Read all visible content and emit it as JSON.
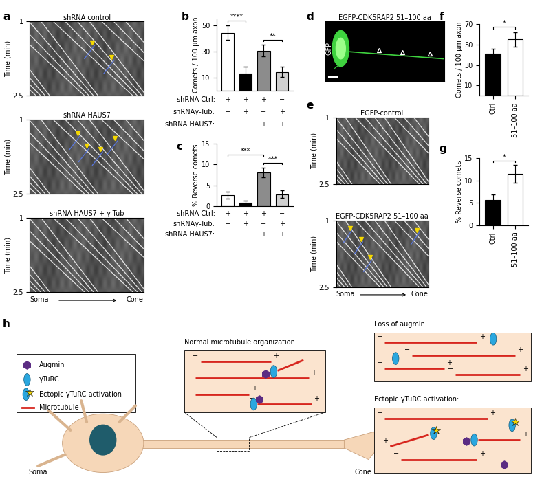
{
  "panel_labels": [
    "a",
    "b",
    "c",
    "d",
    "e",
    "f",
    "g",
    "h"
  ],
  "kymograph_axis": {
    "ylabel": "Time (min)",
    "ylim": [
      1,
      2.5
    ],
    "yticks": [
      1,
      2.5
    ],
    "soma": "Soma",
    "cone": "Cone"
  },
  "panel_a": {
    "titles": [
      "shRNA control",
      "shRNA HAUS7",
      "shRNA HAUS7 + γ-Tub"
    ]
  },
  "panel_d": {
    "title": "EGFP-CDK5RAP2 51–100 aa",
    "channel": "GFP"
  },
  "panel_e": {
    "titles": [
      "EGFP-control",
      "EGFP-CDK5RAP2 51–100 aa"
    ]
  },
  "chart_data": [
    {
      "type": "bar",
      "categories": [
        null,
        null,
        null,
        null
      ],
      "values": [
        44.5,
        13.5,
        31,
        14.5
      ],
      "errors": [
        5.5,
        5,
        4.5,
        4
      ],
      "colors": [
        "#ffffff",
        "#000000",
        "#8c8c8c",
        "#d0d0d0"
      ],
      "ylabel": "Comets / 100 µm axon",
      "ylim": [
        0,
        55
      ],
      "yticks": [
        10,
        30,
        50
      ],
      "tick_labels": "y",
      "significance": [
        {
          "from": 0,
          "to": 1,
          "label": "****"
        },
        {
          "from": 2,
          "to": 3,
          "label": "**"
        }
      ],
      "conditions": [
        {
          "name": "shRNA Ctrl:",
          "marks": [
            "+",
            "+",
            "+",
            "−"
          ]
        },
        {
          "name": "shRNAγ-Tub:",
          "marks": [
            "−",
            "+",
            "−",
            "+"
          ]
        },
        {
          "name": "shRNA HAUS7:",
          "marks": [
            "−",
            "−",
            "+",
            "+"
          ]
        }
      ]
    },
    {
      "type": "bar",
      "categories": [
        null,
        null,
        null,
        null
      ],
      "values": [
        2.6,
        0.7,
        8.1,
        2.8
      ],
      "errors": [
        0.8,
        0.5,
        1.2,
        0.9
      ],
      "colors": [
        "#ffffff",
        "#000000",
        "#8c8c8c",
        "#d0d0d0"
      ],
      "ylabel": "% Reverse comets",
      "ylim": [
        0,
        15
      ],
      "yticks": [
        0,
        5,
        10,
        15
      ],
      "tick_labels": "y",
      "significance": [
        {
          "from": 0,
          "to": 2,
          "label": "***"
        },
        {
          "from": 2,
          "to": 3,
          "label": "***"
        }
      ],
      "conditions": [
        {
          "name": "shRNA Ctrl:",
          "marks": [
            "+",
            "+",
            "+",
            "−"
          ]
        },
        {
          "name": "shRNAγ-Tub:",
          "marks": [
            "−",
            "+",
            "−",
            "+"
          ]
        },
        {
          "name": "shRNA HAUS7:",
          "marks": [
            "−",
            "−",
            "+",
            "+"
          ]
        }
      ]
    },
    {
      "type": "bar",
      "categories": [
        "Ctrl",
        "51–100 aa"
      ],
      "values": [
        41,
        55
      ],
      "errors": [
        4.5,
        7
      ],
      "colors": [
        "#000000",
        "#ffffff"
      ],
      "ylabel": "Comets / 100 µm axon",
      "ylim": [
        0,
        70
      ],
      "yticks": [
        10,
        30,
        50,
        70
      ],
      "significance": [
        {
          "from": 0,
          "to": 1,
          "label": "*"
        }
      ]
    },
    {
      "type": "bar",
      "categories": [
        "Ctrl",
        "51–100 aa"
      ],
      "values": [
        5.6,
        11.4
      ],
      "errors": [
        1.3,
        2.0
      ],
      "colors": [
        "#000000",
        "#ffffff"
      ],
      "ylabel": "% Reverse comets",
      "ylim": [
        0,
        15
      ],
      "yticks": [
        0,
        5,
        10,
        15
      ],
      "significance": [
        {
          "from": 0,
          "to": 1,
          "label": "*"
        }
      ]
    }
  ],
  "diagram": {
    "legend": [
      "Augmin",
      "γTuRC",
      "Ectopic γTuRC activation",
      "Microtubule"
    ],
    "normal_title": "Normal microtubule organization:",
    "loss_title": "Loss of augmin:",
    "ectopic_title": "Ectopic γTuRC activation:",
    "soma": "Soma",
    "cone": "Cone",
    "plus": "+",
    "minus": "−"
  }
}
